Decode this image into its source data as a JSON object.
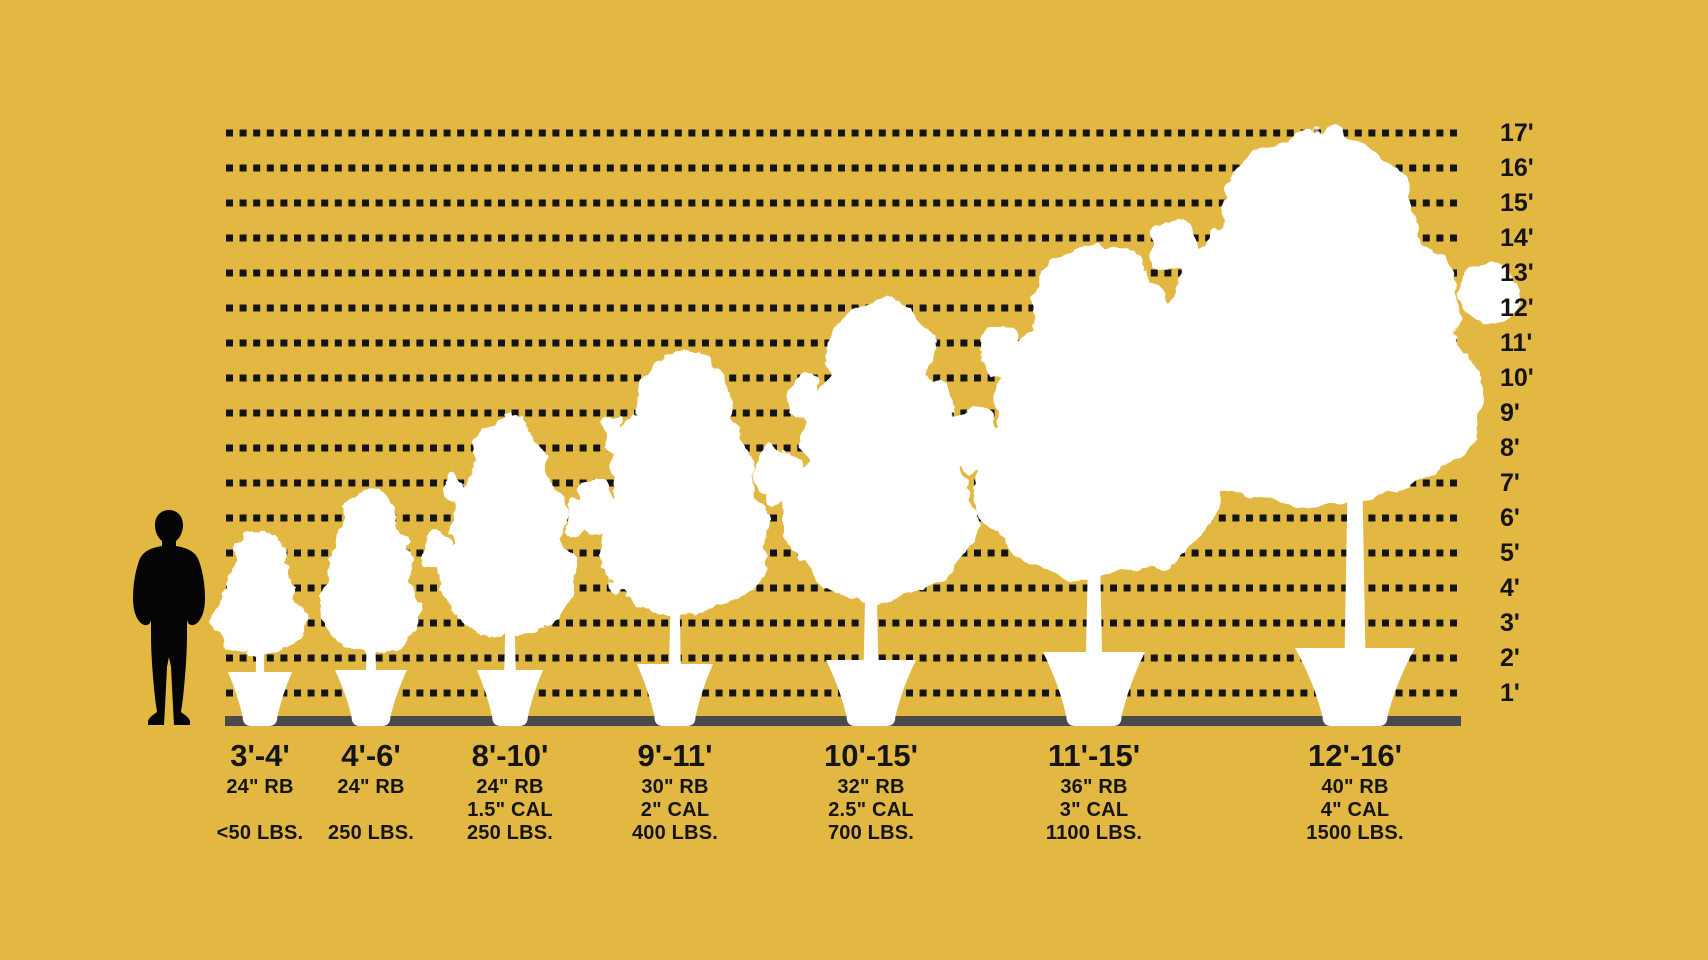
{
  "title": "Tree size comparison chart with height scale and human figure for reference",
  "colors": {
    "background": "#E2B842",
    "tree": "#FFFFFF",
    "ink": "#141414",
    "ground": "#4A4A4A",
    "figure": "#050505"
  },
  "axis": {
    "tick_labels": [
      "17'",
      "16'",
      "15'",
      "14'",
      "13'",
      "12'",
      "11'",
      "10'",
      "9'",
      "8'",
      "7'",
      "6'",
      "5'",
      "4'",
      "3'",
      "2'",
      "1'"
    ],
    "unit": "feet",
    "style": "horizontal dotted lines, labels on right side"
  },
  "reference_figure": {
    "name": "man-silhouette",
    "approx_height_ft": 6
  },
  "chart_data": {
    "type": "bar",
    "title": "Potted tree heights by nursery size class",
    "categories": [
      "3'-4'",
      "4'-6'",
      "8'-10'",
      "9'-11'",
      "10'-15'",
      "11'-15'",
      "12'-16'"
    ],
    "values": [
      5.5,
      6.7,
      8.6,
      10.5,
      11.9,
      13.5,
      16.7
    ],
    "values_note": "drawn apex height of each tree silhouette in feet against the gridline scale",
    "xlabel": "",
    "ylabel": "height (feet)",
    "ylim": [
      0,
      17
    ],
    "grid": "dotted horizontal line every 1 foot from 1' to 17'",
    "legend_position": "none",
    "details": [
      {
        "size": "3'-4'",
        "root_ball": "24\" RB",
        "caliper": "",
        "weight": "<50 LBS."
      },
      {
        "size": "4'-6'",
        "root_ball": "24\" RB",
        "caliper": "",
        "weight": "250 LBS."
      },
      {
        "size": "8'-10'",
        "root_ball": "24\" RB",
        "caliper": "1.5\" CAL",
        "weight": "250 LBS."
      },
      {
        "size": "9'-11'",
        "root_ball": "30\" RB",
        "caliper": "2\" CAL",
        "weight": "400 LBS."
      },
      {
        "size": "10'-15'",
        "root_ball": "32\" RB",
        "caliper": "2.5\" CAL",
        "weight": "700 LBS."
      },
      {
        "size": "11'-15'",
        "root_ball": "36\" RB",
        "caliper": "3\" CAL",
        "weight": "1100 LBS."
      },
      {
        "size": "12'-16'",
        "root_ball": "40\" RB",
        "caliper": "4\" CAL",
        "weight": "1500 LBS."
      }
    ]
  }
}
